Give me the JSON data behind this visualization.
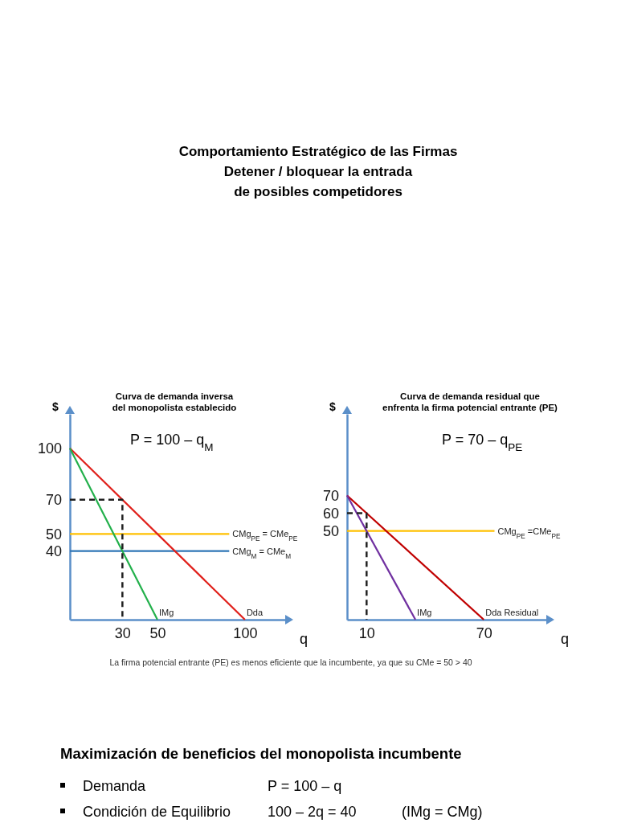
{
  "chart_data": [
    {
      "type": "line",
      "title": "Curva de demanda inversa\ndel monopolista establecido",
      "subtitle": "P = 100 – q$_{M}$",
      "xlabel": "q",
      "ylabel": "$",
      "xlim": [
        0,
        123
      ],
      "ylim": [
        0,
        120
      ],
      "xticks": [
        30,
        50,
        100
      ],
      "yticks": [
        40,
        50,
        70,
        100
      ],
      "series": [
        {
          "name": "Dda",
          "color": "#e0201b",
          "x": [
            0,
            100
          ],
          "values": [
            100,
            0
          ]
        },
        {
          "name": "IMg",
          "color": "#22b04b",
          "x": [
            0,
            50
          ],
          "values": [
            100,
            0
          ]
        },
        {
          "color": "#222222",
          "line_style": "dashed",
          "x": [
            0,
            30,
            30
          ],
          "values": [
            70,
            70,
            0
          ]
        }
      ],
      "ref_lines": [
        {
          "axis": "y",
          "value": 50,
          "label": "CMg$_{PE}$ = CMe$_{PE}$",
          "color": "#ffc000"
        },
        {
          "axis": "y",
          "value": 40,
          "label": "CMg$_{M}$ = CMe$_{M}$",
          "color": "#2e75b6"
        }
      ],
      "annotations": [
        "Comportamiento Estratégico de las Firmas\nDetener / bloquear la entrada\nde posibles competidores",
        "La firma potencial entrante (PE) es menos eficiente que la incumbente, ya que su CMe = 50 > 40",
        "Maximización de beneficios del monopolista incumbente",
        "Demanda",
        "P = 100 – q",
        "Condición de Equilibrio",
        "100 – 2q = 40",
        "(IMg = CMg)"
      ]
    },
    {
      "type": "line",
      "title": "Curva de demanda residual que\nenfrenta la firma potencial entrante (PE)",
      "subtitle": "P = 70 – q$_{PE}$",
      "xlabel": "q",
      "ylabel": "$",
      "xlim": [
        0,
        102
      ],
      "ylim": [
        0,
        116
      ],
      "xticks": [
        10,
        70
      ],
      "yticks": [
        50,
        60,
        70
      ],
      "series": [
        {
          "name": "Dda Residual",
          "color": "#c00000",
          "x": [
            0,
            70
          ],
          "values": [
            70,
            0
          ]
        },
        {
          "name": "IMg",
          "color": "#7030a0",
          "x": [
            0,
            35
          ],
          "values": [
            70,
            0
          ]
        },
        {
          "color": "#222222",
          "line_style": "dashed",
          "x": [
            0,
            10,
            10
          ],
          "values": [
            60,
            60,
            0
          ]
        }
      ],
      "ref_lines": [
        {
          "axis": "y",
          "value": 50,
          "label": "CMg$_{PE}$ =CMe$_{PE}$",
          "color": "#ffc000"
        }
      ]
    }
  ]
}
